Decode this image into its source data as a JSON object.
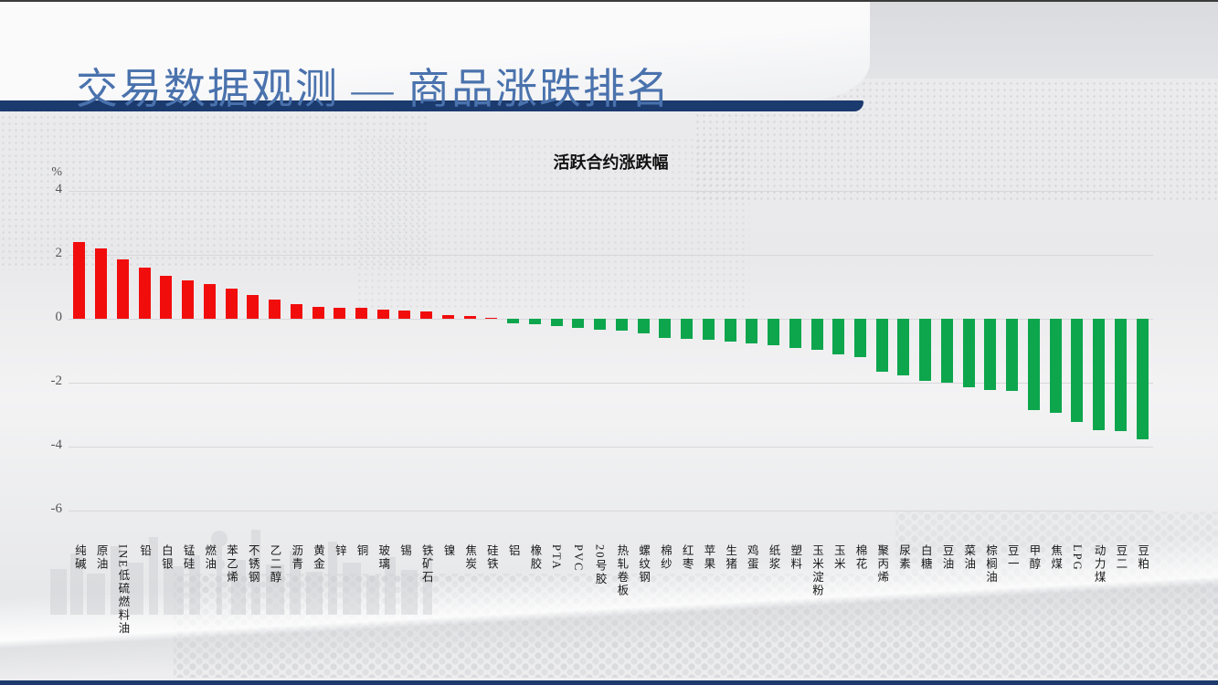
{
  "slide": {
    "title": "交易数据观测 — 商品涨跌排名",
    "accent_color": "#1b3a6e",
    "title_color": "#4a72ad"
  },
  "chart_data": {
    "type": "bar",
    "title": "活跃合约涨跌幅",
    "unit_label": "%",
    "ylabel": "%",
    "ylim": [
      -6,
      4
    ],
    "yticks": [
      4,
      2,
      0,
      -2,
      -4,
      -6
    ],
    "grid": true,
    "positive_color": "#f20d0d",
    "negative_color": "#0da64d",
    "categories": [
      "纯碱",
      "原油",
      "INE低硫燃料油",
      "铅",
      "白银",
      "锰硅",
      "燃油",
      "苯乙烯",
      "不锈钢",
      "乙二醇",
      "沥青",
      "黄金",
      "锌",
      "铜",
      "玻璃",
      "锡",
      "铁矿石",
      "镍",
      "焦炭",
      "硅铁",
      "铝",
      "橡胶",
      "PTA",
      "PVC",
      "20号胶",
      "热轧卷板",
      "螺纹钢",
      "棉纱",
      "红枣",
      "苹果",
      "生猪",
      "鸡蛋",
      "纸浆",
      "塑料",
      "玉米淀粉",
      "玉米",
      "棉花",
      "聚丙烯",
      "尿素",
      "白糖",
      "豆油",
      "菜油",
      "棕榈油",
      "豆一",
      "甲醇",
      "焦煤",
      "LPG",
      "动力煤",
      "豆二",
      "豆粕"
    ],
    "values": [
      2.4,
      2.2,
      1.85,
      1.6,
      1.35,
      1.2,
      1.1,
      0.95,
      0.75,
      0.6,
      0.45,
      0.38,
      0.35,
      0.33,
      0.3,
      0.26,
      0.23,
      0.12,
      0.08,
      0.04,
      -0.13,
      -0.16,
      -0.24,
      -0.29,
      -0.33,
      -0.38,
      -0.45,
      -0.6,
      -0.63,
      -0.66,
      -0.7,
      -0.76,
      -0.84,
      -0.92,
      -0.98,
      -1.1,
      -1.19,
      -1.65,
      -1.76,
      -1.95,
      -2.0,
      -2.14,
      -2.22,
      -2.25,
      -2.86,
      -2.95,
      -3.22,
      -3.48,
      -3.52,
      -3.76
    ]
  }
}
